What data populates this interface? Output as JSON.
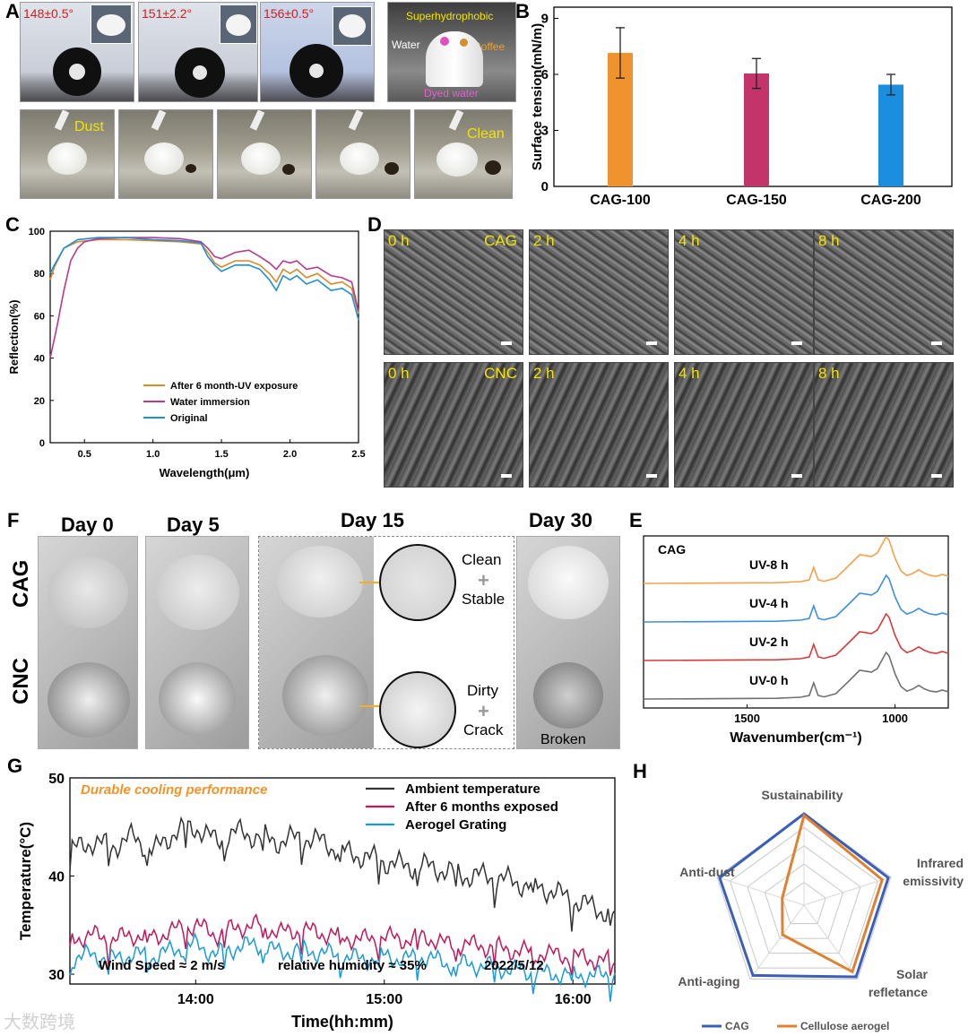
{
  "panels": {
    "A": "A",
    "B": "B",
    "C": "C",
    "D": "D",
    "E": "E",
    "F": "F",
    "G": "G",
    "H": "H"
  },
  "panel_a": {
    "contact_angles": [
      "148±0.5°",
      "151±2.2°",
      "156±0.5°"
    ],
    "droplet_photo": {
      "superhydrophobic": "Superhydrophobic",
      "water": "Water",
      "coffee": "Coffee",
      "dyed_water": "Dyed water"
    },
    "dust_first": "Dust",
    "dust_last": "Clean"
  },
  "panel_d": {
    "times": [
      "0 h",
      "2 h",
      "4 h",
      "8 h"
    ],
    "row_cag": "CAG",
    "row_cnc": "CNC"
  },
  "panel_f": {
    "days": [
      "Day 0",
      "Day 5",
      "Day 15",
      "Day 30"
    ],
    "rows": [
      "CAG",
      "CNC"
    ],
    "cag_notes": [
      "Clean",
      "+",
      "Stable"
    ],
    "cnc_notes": [
      "Dirty",
      "+",
      "Crack"
    ],
    "broken": "Broken"
  },
  "chart_data": [
    {
      "id": "B",
      "type": "bar",
      "categories": [
        "CAG-100",
        "CAG-150",
        "CAG-200"
      ],
      "values": [
        7.15,
        6.05,
        5.45
      ],
      "errors": [
        1.35,
        0.8,
        0.55
      ],
      "colors": [
        "#f0922e",
        "#c2346a",
        "#1c8ee0"
      ],
      "ylabel": "Surface tension(mN/m)",
      "ylim": [
        0,
        9.6
      ],
      "yticks": [
        0,
        3,
        6,
        9
      ]
    },
    {
      "id": "C",
      "type": "line",
      "xlabel": "Wavelength(μm)",
      "ylabel": "Reflection(%)",
      "xlim": [
        0.25,
        2.5
      ],
      "ylim": [
        0,
        100
      ],
      "xticks": [
        0.5,
        1.0,
        1.5,
        2.0,
        2.5
      ],
      "xtick_labels": [
        "0.5",
        "1.0",
        "1.5",
        "2.0",
        "2.5"
      ],
      "yticks": [
        0,
        20,
        40,
        60,
        80,
        100
      ],
      "legend_position": "bottom-left",
      "series": [
        {
          "name": "After 6 month-UV exposure",
          "color": "#d88a2a",
          "x": [
            0.25,
            0.28,
            0.35,
            0.45,
            0.6,
            0.8,
            1.0,
            1.2,
            1.35,
            1.4,
            1.45,
            1.5,
            1.6,
            1.7,
            1.78,
            1.85,
            1.9,
            1.95,
            2.0,
            2.05,
            2.12,
            2.2,
            2.3,
            2.38,
            2.45,
            2.5
          ],
          "y": [
            77,
            83,
            92,
            95,
            96,
            96,
            95.5,
            95,
            94,
            90,
            85,
            83,
            86,
            86,
            84,
            80,
            76,
            82,
            80,
            82,
            78,
            80,
            75,
            76,
            73,
            61
          ]
        },
        {
          "name": "Water immersion",
          "color": "#b83a8c",
          "x": [
            0.25,
            0.3,
            0.35,
            0.4,
            0.45,
            0.5,
            0.6,
            0.8,
            1.0,
            1.2,
            1.35,
            1.4,
            1.45,
            1.5,
            1.6,
            1.7,
            1.78,
            1.85,
            1.9,
            1.95,
            2.0,
            2.05,
            2.12,
            2.2,
            2.3,
            2.38,
            2.45,
            2.5
          ],
          "y": [
            40,
            55,
            72,
            86,
            92,
            95,
            96.5,
            97,
            97,
            96.5,
            95,
            92,
            88,
            87,
            90,
            91,
            88,
            85,
            82,
            86,
            85,
            86,
            82,
            83,
            79,
            78,
            76,
            62
          ]
        },
        {
          "name": "Original",
          "color": "#1f8fd6",
          "x": [
            0.25,
            0.28,
            0.35,
            0.45,
            0.6,
            0.8,
            1.0,
            1.2,
            1.35,
            1.4,
            1.45,
            1.5,
            1.6,
            1.7,
            1.78,
            1.85,
            1.9,
            1.95,
            2.0,
            2.05,
            2.12,
            2.2,
            2.3,
            2.38,
            2.45,
            2.5
          ],
          "y": [
            80,
            84,
            92,
            96,
            97,
            97,
            96,
            95.5,
            94.5,
            88,
            84,
            81,
            84,
            84,
            82,
            77,
            72,
            79,
            77,
            79,
            75,
            77,
            72,
            73,
            70,
            58
          ]
        }
      ]
    },
    {
      "id": "E",
      "type": "line",
      "title": "CAG",
      "xlabel": "Wavenumber(cm⁻¹)",
      "xlim": [
        1850,
        820
      ],
      "xticks": [
        1500,
        1000
      ],
      "xtick_labels": [
        "1500",
        "1000"
      ],
      "series": [
        {
          "name": "UV-8 h",
          "color": "#f5a04a",
          "offset": 3
        },
        {
          "name": "UV-4 h",
          "color": "#3d8fdc",
          "offset": 2
        },
        {
          "name": "UV-2 h",
          "color": "#d83a3a",
          "offset": 1
        },
        {
          "name": "UV-0 h",
          "color": "#707070",
          "offset": 0
        }
      ],
      "spectrum_x": [
        1850,
        1400,
        1320,
        1290,
        1275,
        1260,
        1240,
        1200,
        1150,
        1120,
        1100,
        1080,
        1060,
        1040,
        1030,
        1020,
        1000,
        980,
        960,
        940,
        920,
        900,
        880,
        860,
        840,
        820
      ],
      "spectrum_y": [
        0.0,
        0.02,
        0.05,
        0.1,
        0.45,
        0.1,
        0.06,
        0.15,
        0.55,
        0.8,
        0.78,
        0.75,
        0.85,
        1.15,
        1.3,
        1.2,
        0.7,
        0.35,
        0.22,
        0.28,
        0.38,
        0.28,
        0.22,
        0.2,
        0.25,
        0.2
      ]
    },
    {
      "id": "G",
      "type": "line",
      "xlabel": "Time(hh:mm)",
      "ylabel": "Temperature(°C)",
      "xlim": [
        0,
        130
      ],
      "ylim": [
        29,
        50
      ],
      "xticks": [
        30,
        75,
        120
      ],
      "xtick_labels": [
        "14:00",
        "15:00",
        "16:00"
      ],
      "yticks": [
        30,
        40,
        50
      ],
      "annotation_title": "Durable cooling performance",
      "annotations": [
        "Wind Speed ≈ 2 m/s",
        "relative humidity ≈ 35%",
        "2022/5/12"
      ],
      "series": [
        {
          "name": "Ambient temperature",
          "color": "#333333",
          "x": [
            0,
            5,
            10,
            15,
            20,
            25,
            30,
            35,
            40,
            45,
            50,
            55,
            60,
            65,
            70,
            75,
            80,
            85,
            90,
            95,
            100,
            105,
            110,
            115,
            120,
            125,
            130
          ],
          "y": [
            42.5,
            43.5,
            43,
            44,
            42.5,
            44.5,
            45,
            43.5,
            44.5,
            44,
            43.5,
            44,
            43.5,
            42.5,
            42,
            41.5,
            41,
            41,
            40.5,
            40,
            40,
            39.5,
            39,
            38.5,
            37.5,
            36.8,
            36
          ]
        },
        {
          "name": "After 6 months exposed",
          "color": "#c2185b",
          "x": [
            0,
            5,
            10,
            15,
            20,
            25,
            30,
            35,
            40,
            45,
            50,
            55,
            60,
            65,
            70,
            75,
            80,
            85,
            90,
            95,
            100,
            105,
            110,
            115,
            120,
            125,
            130
          ],
          "y": [
            33.5,
            34,
            33.5,
            34,
            33.8,
            34.5,
            35,
            34,
            34.8,
            35,
            34.2,
            34.5,
            34.2,
            33.8,
            33.5,
            33.8,
            33.5,
            33.8,
            33,
            33,
            32.8,
            32.5,
            32.2,
            32,
            31.8,
            31.5,
            31.2
          ]
        },
        {
          "name": "Aerogel Grating",
          "color": "#1a9ad9",
          "x": [
            0,
            5,
            10,
            15,
            20,
            25,
            30,
            35,
            40,
            45,
            50,
            55,
            60,
            65,
            70,
            75,
            80,
            85,
            90,
            95,
            100,
            105,
            110,
            115,
            120,
            125,
            130
          ],
          "y": [
            31.5,
            32,
            31.5,
            32,
            31.8,
            32.5,
            33,
            32,
            32.8,
            33,
            32.2,
            32.5,
            32.2,
            31.8,
            31.5,
            31.8,
            31.5,
            31.8,
            31,
            31,
            30.8,
            30.5,
            30.2,
            30,
            30,
            29.8,
            30
          ]
        }
      ]
    },
    {
      "id": "H",
      "type": "radar",
      "axes": [
        "Sustainability",
        "Infrared emissivity",
        "Solar refletance",
        "Anti-aging",
        "Anti-dust"
      ],
      "axis_label_lines": [
        [
          "Sustainability"
        ],
        [
          "Infrared",
          "emissivity"
        ],
        [
          "Solar",
          "refletance"
        ],
        [
          "Anti-aging"
        ],
        [
          "Anti-dust"
        ]
      ],
      "series": [
        {
          "name": "CAG",
          "color": "#3b5fb8",
          "values": [
            1.0,
            0.97,
            0.97,
            0.95,
            0.97
          ]
        },
        {
          "name": "Cellulose aerogel",
          "color": "#e0812f",
          "values": [
            0.98,
            0.9,
            0.9,
            0.4,
            0.25
          ]
        }
      ]
    }
  ],
  "watermark": "大数跨境"
}
